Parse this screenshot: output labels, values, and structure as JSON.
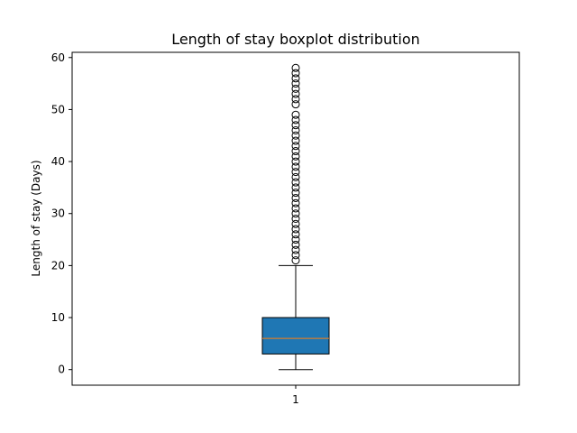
{
  "chart_data": {
    "type": "boxplot",
    "title": "Length of stay boxplot distribution",
    "xlabel": "",
    "ylabel": "Length of stay (Days)",
    "categories": [
      "1"
    ],
    "ylim": [
      -3,
      61
    ],
    "yticks": [
      0,
      10,
      20,
      30,
      40,
      50,
      60
    ],
    "grid": false,
    "legend": "none",
    "box": {
      "whisker_low": 0,
      "q1": 3,
      "median": 6,
      "q3": 10,
      "whisker_high": 20,
      "fill_color": "#1f77b4",
      "median_color": "#ff7f0e",
      "outliers": [
        21,
        22,
        23,
        24,
        25,
        26,
        27,
        28,
        29,
        30,
        31,
        32,
        33,
        34,
        35,
        36,
        37,
        38,
        39,
        40,
        41,
        42,
        43,
        44,
        45,
        46,
        47,
        48,
        49,
        51,
        52,
        53,
        54,
        55,
        56,
        57,
        58
      ]
    }
  }
}
